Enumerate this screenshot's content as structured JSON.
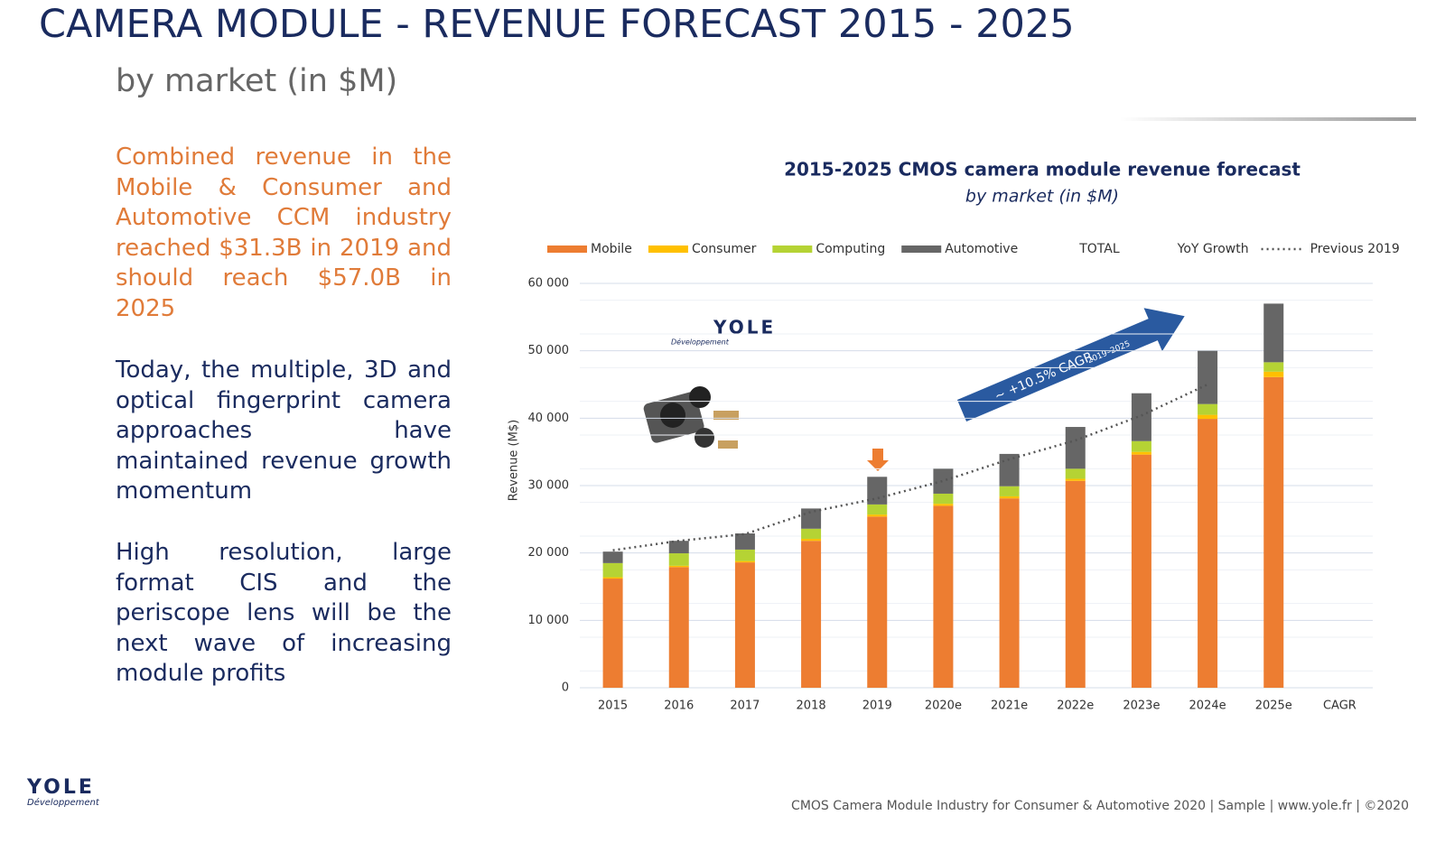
{
  "header": {
    "title": "CAMERA MODULE - REVENUE FORECAST 2015 - 2025",
    "subtitle": "by market (in $M)"
  },
  "paragraphs": [
    "Combined revenue in the Mobile & Consumer and Automotive CCM industry reached $31.3B in 2019 and should reach $57.0B in 2025",
    "Today, the multiple, 3D and optical fingerprint camera approaches have maintained revenue growth momentum",
    "High resolution, large format CIS and the periscope lens will be the next wave of increasing module profits"
  ],
  "logo": {
    "name": "YOLE",
    "tagline": "Développement"
  },
  "footer": "CMOS Camera Module Industry for Consumer & Automotive 2020 | Sample | www.yole.fr | ©2020",
  "chart_data": {
    "type": "stacked_bar",
    "title": "2015-2025 CMOS camera module revenue forecast",
    "subtitle": "by market (in $M)",
    "y_label": "Revenue (M$)",
    "categories": [
      "2015",
      "2016",
      "2017",
      "2018",
      "2019",
      "2020e",
      "2021e",
      "2022e",
      "2023e",
      "2024e",
      "2025e",
      "CAGR"
    ],
    "series": [
      {
        "name": "Mobile",
        "color": "#ed7d31",
        "values": [
          16200,
          17900,
          18600,
          21800,
          25400,
          27000,
          28100,
          30700,
          34600,
          39900,
          46100,
          null
        ]
      },
      {
        "name": "Consumer",
        "color": "#ffc000",
        "values": [
          200,
          200,
          200,
          300,
          300,
          300,
          300,
          300,
          400,
          600,
          800,
          null
        ]
      },
      {
        "name": "Computing",
        "color": "#b5d334",
        "values": [
          2100,
          1850,
          1700,
          1500,
          1500,
          1500,
          1500,
          1500,
          1600,
          1600,
          1400,
          null
        ]
      },
      {
        "name": "Automotive",
        "color": "#666666",
        "values": [
          1700,
          1850,
          2400,
          3000,
          4100,
          3700,
          4800,
          6200,
          7100,
          7900,
          8700,
          null
        ]
      }
    ],
    "line_series": {
      "name": "Previous 2019",
      "color": "#555555",
      "values": [
        20400,
        21800,
        22800,
        26100,
        28100,
        30700,
        33900,
        36700,
        40400,
        45000,
        null,
        null
      ]
    },
    "legend_extra": [
      "TOTAL",
      "YoY Growth"
    ],
    "annotation": {
      "text": "~ +10.5% CAGR",
      "sub": "2019–2025"
    },
    "ylim": [
      0,
      60000
    ],
    "yticks": [
      0,
      {
        "value": 10000,
        "label": "10 000"
      },
      {
        "value": 20000,
        "label": "20 000"
      },
      {
        "value": 30000,
        "label": "30 000"
      },
      {
        "value": 40000,
        "label": "40 000"
      },
      {
        "value": 50000,
        "label": "50 000"
      },
      {
        "value": 60000,
        "label": "60 000"
      }
    ],
    "grid": true
  }
}
